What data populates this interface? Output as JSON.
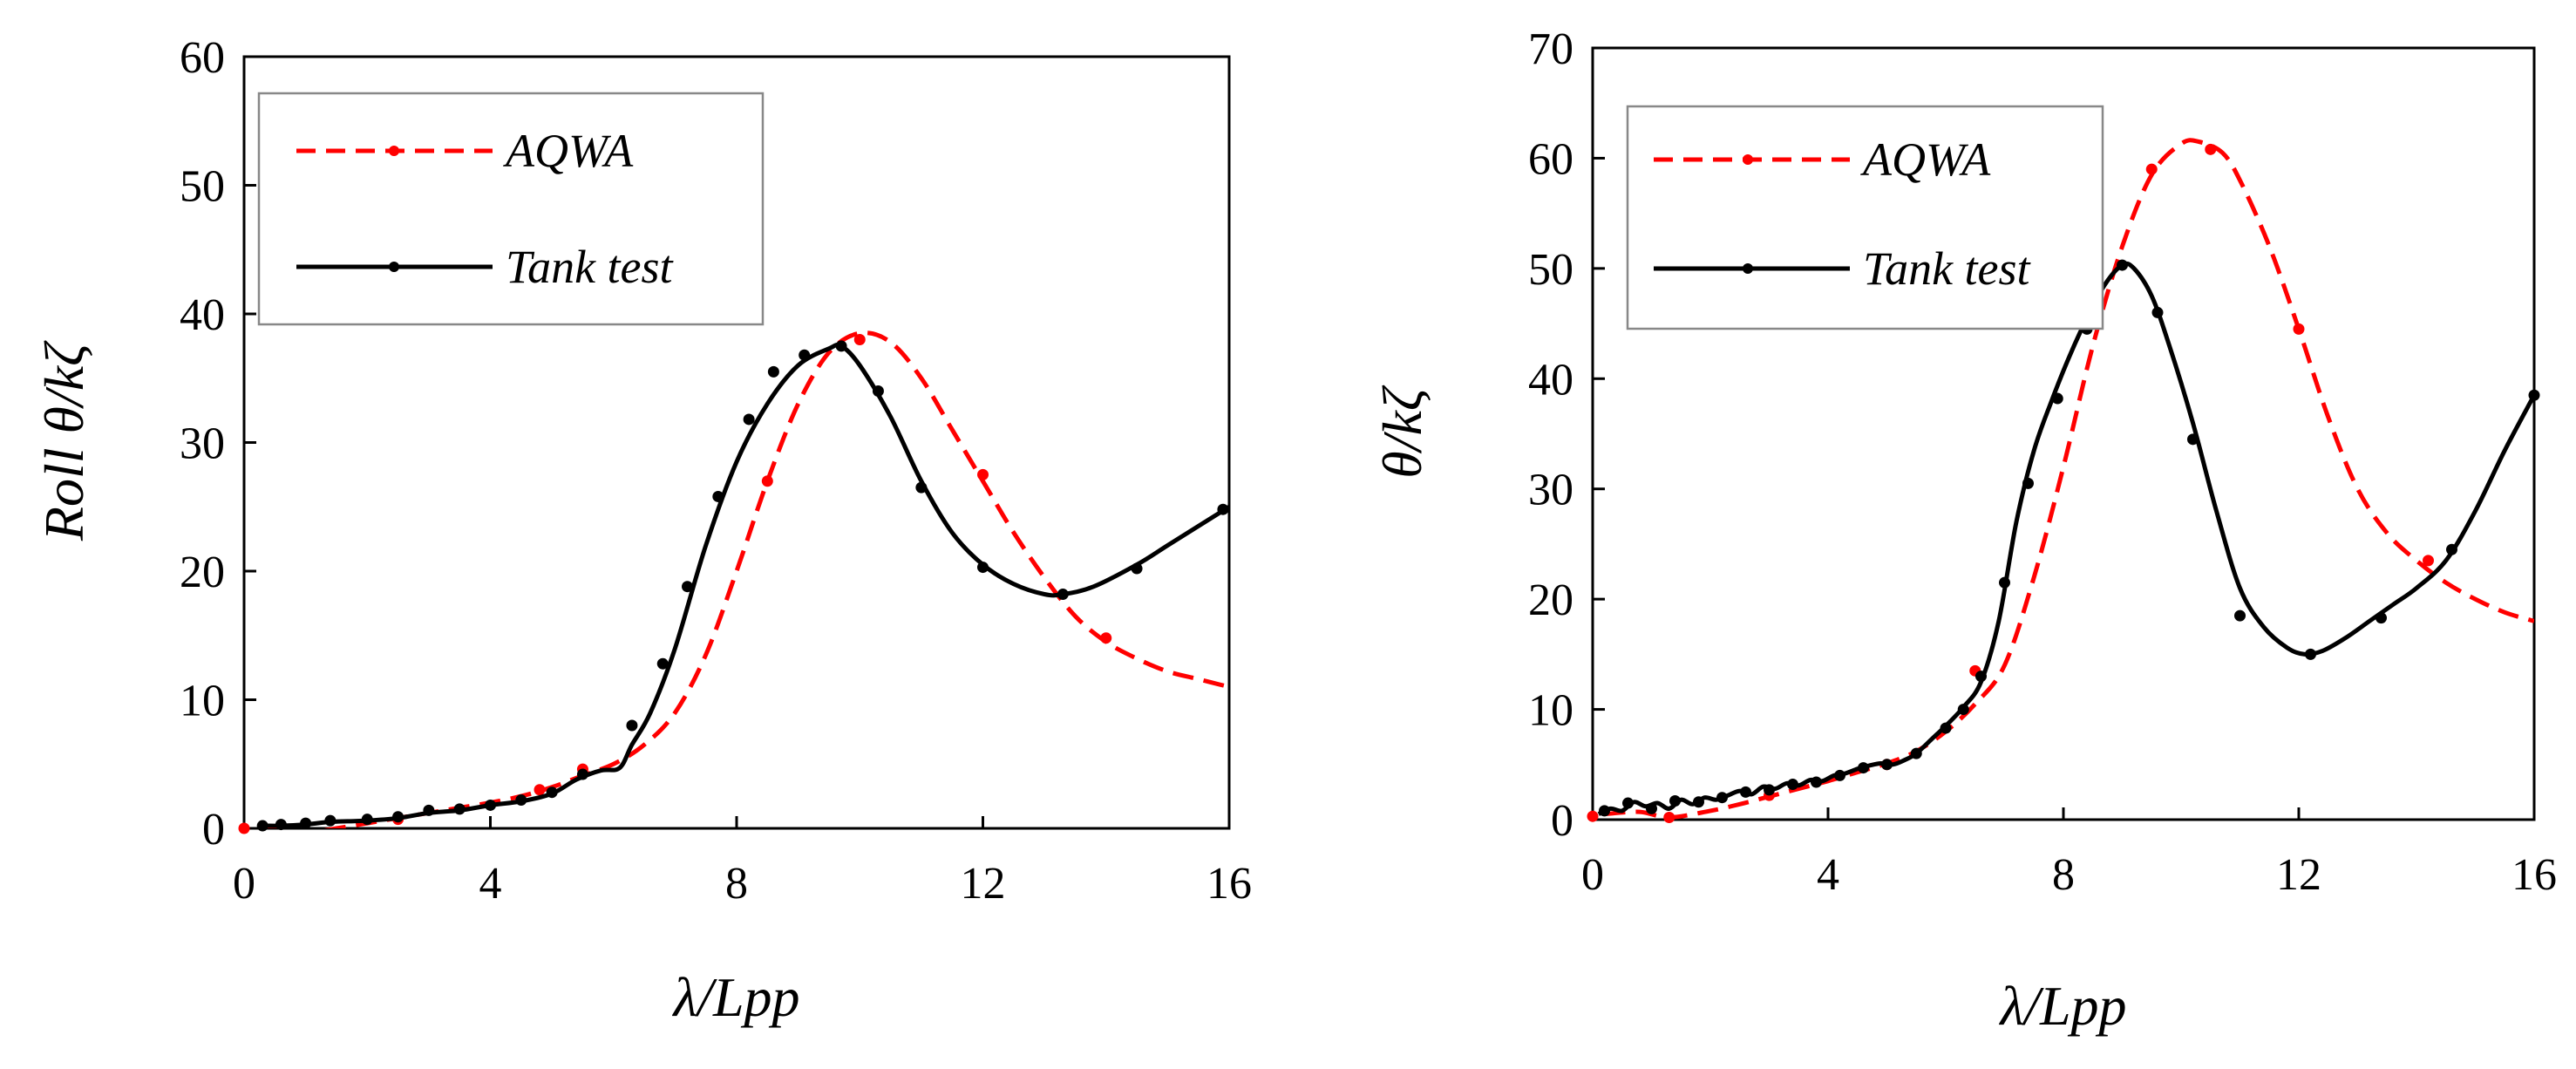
{
  "chart_data": [
    {
      "type": "line",
      "xlabel": "λ/Lpp",
      "ylabel": "Roll θ/kζ",
      "xlim": [
        0,
        16
      ],
      "ylim": [
        0,
        60
      ],
      "xticks": [
        "0",
        "4",
        "8",
        "12",
        "16"
      ],
      "yticks": [
        "0",
        "10",
        "20",
        "30",
        "40",
        "50",
        "60"
      ],
      "legend_position": "top-left",
      "series": [
        {
          "name": "AQWA",
          "color": "#ff0000",
          "style": "dashed",
          "x": [
            0.3,
            1.0,
            1.5,
            2.0,
            2.5,
            3.0,
            3.5,
            4.0,
            4.5,
            5.0,
            5.5,
            6.0,
            6.5,
            7.0,
            7.5,
            8.0,
            8.5,
            9.0,
            9.5,
            10.0,
            10.5,
            11.0,
            11.5,
            12.0,
            12.5,
            13.0,
            13.5,
            14.0,
            14.5,
            15.0,
            15.5,
            16.0
          ],
          "y": [
            0.0,
            -0.3,
            0.0,
            0.4,
            0.8,
            1.2,
            1.6,
            2.0,
            2.5,
            3.2,
            4.1,
            5.0,
            6.5,
            9.0,
            13.5,
            20.0,
            27.0,
            33.0,
            37.0,
            38.5,
            37.8,
            35.0,
            31.0,
            27.0,
            23.0,
            19.5,
            16.5,
            14.5,
            13.2,
            12.2,
            11.6,
            11.0
          ],
          "markers_x": [
            0.0,
            2.5,
            4.8,
            5.5,
            8.5,
            10.0,
            12.0,
            14.0
          ],
          "markers_y": [
            0.0,
            0.7,
            3.0,
            4.6,
            27.0,
            38.0,
            27.5,
            14.8
          ]
        },
        {
          "name": "Tank test",
          "color": "#000000",
          "style": "solid",
          "x": [
            0.3,
            0.6,
            1.0,
            1.4,
            2.0,
            2.5,
            3.0,
            3.5,
            4.0,
            4.5,
            5.0,
            5.4,
            5.8,
            6.1,
            6.3,
            6.6,
            7.0,
            7.5,
            8.0,
            8.5,
            9.0,
            9.5,
            9.7,
            10.0,
            10.5,
            11.0,
            11.5,
            12.0,
            12.5,
            13.0,
            13.3,
            13.8,
            14.5,
            15.0,
            15.5,
            16.0
          ],
          "y": [
            0.2,
            0.2,
            0.3,
            0.5,
            0.6,
            0.8,
            1.2,
            1.4,
            1.8,
            2.1,
            2.7,
            3.8,
            4.5,
            4.7,
            6.5,
            9.0,
            14.0,
            22.0,
            28.5,
            33.0,
            36.0,
            37.3,
            37.5,
            36.0,
            32.0,
            27.0,
            23.0,
            20.5,
            19.0,
            18.2,
            18.2,
            18.8,
            20.5,
            22.0,
            23.5,
            25.0
          ],
          "markers_x": [
            0.3,
            0.6,
            1.0,
            1.4,
            2.0,
            2.5,
            3.0,
            3.5,
            4.0,
            4.5,
            5.0,
            5.5,
            6.3,
            6.8,
            7.2,
            7.7,
            8.2,
            8.6,
            9.1,
            9.7,
            10.3,
            11.0,
            12.0,
            13.3,
            14.5,
            15.9
          ],
          "markers_y": [
            0.2,
            0.3,
            0.4,
            0.6,
            0.7,
            0.9,
            1.4,
            1.5,
            1.8,
            2.2,
            2.8,
            4.2,
            8.0,
            12.8,
            18.8,
            25.8,
            31.8,
            35.5,
            36.8,
            37.5,
            34.0,
            26.5,
            20.3,
            18.2,
            20.2,
            24.8
          ]
        }
      ]
    },
    {
      "type": "line",
      "xlabel": "λ/Lpp",
      "ylabel": "θ/kζ",
      "xlim": [
        0,
        16
      ],
      "ylim": [
        0,
        70
      ],
      "xticks": [
        "0",
        "4",
        "8",
        "12",
        "16"
      ],
      "yticks": [
        "0",
        "10",
        "20",
        "30",
        "40",
        "50",
        "60",
        "70"
      ],
      "legend_position": "top-left",
      "series": [
        {
          "name": "AQWA",
          "color": "#ff0000",
          "style": "dashed",
          "x": [
            0.2,
            0.8,
            1.3,
            2.0,
            2.5,
            3.0,
            3.5,
            4.0,
            4.5,
            5.0,
            5.5,
            6.0,
            6.5,
            7.0,
            7.5,
            8.0,
            8.5,
            9.0,
            9.5,
            10.0,
            10.3,
            10.7,
            11.0,
            11.5,
            12.0,
            12.5,
            13.0,
            13.5,
            14.0,
            14.5,
            15.0,
            15.5,
            16.0
          ],
          "y": [
            0.5,
            0.7,
            0.2,
            0.8,
            1.4,
            2.1,
            2.8,
            3.5,
            4.3,
            5.1,
            6.2,
            8.0,
            10.5,
            14.0,
            22.0,
            32.0,
            43.0,
            52.0,
            58.5,
            61.3,
            61.5,
            60.5,
            58.0,
            52.0,
            44.5,
            36.5,
            30.0,
            26.0,
            23.5,
            21.5,
            20.0,
            18.8,
            18.0
          ],
          "markers_x": [
            0.0,
            1.3,
            3.0,
            5.0,
            6.5,
            8.5,
            9.5,
            10.5,
            12.0,
            14.2
          ],
          "markers_y": [
            0.3,
            0.2,
            2.2,
            5.0,
            13.5,
            45.0,
            59.0,
            60.8,
            44.5,
            23.5
          ]
        },
        {
          "name": "Tank test",
          "color": "#000000",
          "style": "solid",
          "x": [
            0.1,
            0.3,
            0.5,
            0.7,
            0.9,
            1.1,
            1.3,
            1.5,
            1.7,
            1.9,
            2.1,
            2.3,
            2.5,
            2.7,
            2.9,
            3.1,
            3.3,
            3.5,
            3.7,
            3.9,
            4.1,
            4.3,
            4.5,
            4.7,
            4.9,
            5.1,
            5.3,
            5.5,
            5.8,
            6.0,
            6.3,
            6.6,
            6.9,
            7.2,
            7.5,
            7.8,
            8.1,
            8.4,
            8.7,
            9.0,
            9.2,
            9.5,
            9.8,
            10.2,
            10.6,
            11.0,
            11.4,
            11.8,
            12.1,
            12.4,
            12.8,
            13.2,
            13.6,
            14.0,
            14.5,
            15.0,
            15.5,
            16.0
          ],
          "y": [
            0.5,
            1.0,
            0.8,
            1.6,
            1.2,
            1.5,
            1.0,
            1.8,
            1.4,
            2.0,
            1.8,
            2.2,
            2.6,
            2.3,
            3.0,
            2.8,
            3.3,
            3.1,
            3.6,
            3.5,
            4.0,
            4.2,
            4.6,
            4.9,
            5.1,
            5.0,
            5.4,
            6.0,
            7.5,
            8.5,
            10.2,
            12.5,
            18.0,
            27.0,
            33.5,
            38.0,
            42.0,
            45.5,
            48.5,
            50.3,
            50.0,
            47.5,
            43.0,
            36.0,
            28.0,
            21.0,
            17.5,
            15.6,
            15.0,
            15.3,
            16.5,
            18.0,
            19.5,
            21.0,
            23.5,
            28.0,
            33.5,
            38.5
          ],
          "markers_x": [
            0.2,
            0.6,
            1.0,
            1.4,
            1.8,
            2.2,
            2.6,
            3.0,
            3.4,
            3.8,
            4.2,
            4.6,
            5.0,
            5.5,
            6.0,
            6.3,
            6.6,
            7.0,
            7.4,
            7.9,
            8.4,
            9.0,
            9.6,
            10.2,
            11.0,
            12.2,
            13.4,
            14.6,
            16.0
          ],
          "markers_y": [
            0.8,
            1.5,
            1.0,
            1.7,
            1.6,
            2.0,
            2.5,
            2.7,
            3.2,
            3.4,
            4.0,
            4.7,
            5.0,
            6.0,
            8.3,
            10.0,
            13.0,
            21.5,
            30.5,
            38.2,
            44.5,
            50.3,
            46.0,
            34.5,
            18.5,
            15.0,
            18.3,
            24.5,
            38.5
          ]
        }
      ]
    }
  ]
}
